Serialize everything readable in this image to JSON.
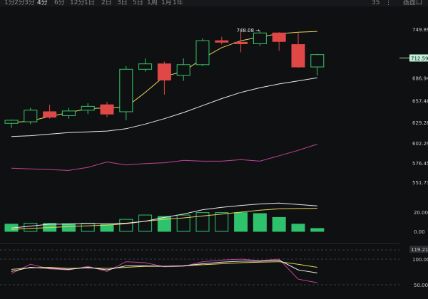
{
  "toolbar": {
    "timeframes": [
      "1分",
      "2分",
      "3分",
      "4分",
      "6分",
      "12分",
      "1日",
      "2日",
      "3日",
      "5日",
      "1周",
      "1月",
      "1年"
    ],
    "active_timeframe": "4分",
    "count_label": "35",
    "menu_label": "画面口"
  },
  "chart_data": [
    {
      "type": "candlestick",
      "panel": "price",
      "y_ticks": [
        749.89,
        712.59,
        686.94,
        657.48,
        629.28,
        602.29,
        576.45,
        551.73
      ],
      "candles": [
        {
          "o": 628,
          "h": 633,
          "l": 622,
          "c": 632
        },
        {
          "o": 630,
          "h": 648,
          "l": 627,
          "c": 645
        },
        {
          "o": 643,
          "h": 652,
          "l": 634,
          "c": 636
        },
        {
          "o": 638,
          "h": 648,
          "l": 634,
          "c": 644
        },
        {
          "o": 645,
          "h": 654,
          "l": 640,
          "c": 650
        },
        {
          "o": 652,
          "h": 656,
          "l": 636,
          "c": 640
        },
        {
          "o": 643,
          "h": 702,
          "l": 632,
          "c": 698
        },
        {
          "o": 698,
          "h": 712,
          "l": 695,
          "c": 705
        },
        {
          "o": 705,
          "h": 708,
          "l": 665,
          "c": 684
        },
        {
          "o": 690,
          "h": 712,
          "l": 683,
          "c": 704
        },
        {
          "o": 704,
          "h": 738,
          "l": 702,
          "c": 735
        },
        {
          "o": 735,
          "h": 740,
          "l": 730,
          "c": 733
        },
        {
          "o": 733,
          "h": 748,
          "l": 720,
          "c": 731
        },
        {
          "o": 731,
          "h": 748,
          "l": 728,
          "c": 745
        },
        {
          "o": 745,
          "h": 746,
          "l": 722,
          "c": 734
        },
        {
          "o": 730,
          "h": 745,
          "l": 700,
          "c": 701
        },
        {
          "o": 701,
          "h": 718,
          "l": 690,
          "c": 717
        }
      ],
      "lines": [
        {
          "color": "#e6d35a",
          "values": [
            629,
            631,
            637,
            642,
            647,
            648,
            649,
            668,
            689,
            695,
            712,
            726,
            735,
            740,
            744,
            746,
            747
          ]
        },
        {
          "color": "#e8e8e8",
          "values": [
            611,
            612,
            614,
            616,
            617,
            618,
            621,
            627,
            634,
            642,
            651,
            660,
            668,
            674,
            679,
            683,
            687
          ]
        },
        {
          "color": "#c2439b",
          "values": [
            570,
            569,
            568,
            567,
            571,
            578,
            574,
            576,
            577,
            580,
            579,
            579,
            581,
            579,
            586,
            593,
            601
          ]
        }
      ],
      "current_price": 712.59,
      "annotation": "748.08"
    },
    {
      "type": "bar",
      "panel": "volume",
      "y_ticks": [
        "20.00",
        "0.00"
      ],
      "values": [
        7.5,
        8.5,
        8.3,
        8.0,
        8.5,
        7.0,
        12.5,
        17.0,
        15.5,
        17.0,
        19.5,
        19.5,
        19.5,
        18.5,
        14.5,
        7.5,
        3.0
      ],
      "lines": [
        {
          "color": "#e6d35a",
          "values": [
            2.0,
            3.0,
            4.0,
            5.0,
            5.8,
            6.5,
            8.0,
            10.5,
            12.5,
            14.0,
            16.0,
            18.0,
            20.0,
            22.0,
            23.5,
            23.8,
            24.0
          ]
        },
        {
          "color": "#e8e8e8",
          "values": [
            3.5,
            5.5,
            7.5,
            7.5,
            8.3,
            8.0,
            8.5,
            10.5,
            14.5,
            18.0,
            22.5,
            25.0,
            27.0,
            28.5,
            29.5,
            28.0,
            26.5
          ]
        }
      ]
    },
    {
      "type": "line",
      "panel": "oscillator",
      "y_ticks": [
        "119.21",
        "100.00",
        "50.00"
      ],
      "lines": [
        {
          "color": "#c2439b",
          "values": [
            72,
            90,
            81,
            79,
            86,
            76,
            95,
            93,
            85,
            86,
            95,
            98,
            100,
            97,
            100,
            61,
            54
          ]
        },
        {
          "color": "#e6d35a",
          "values": [
            80,
            83,
            84,
            82,
            83,
            82,
            84,
            86,
            86,
            87,
            89,
            91,
            93,
            94,
            95,
            90,
            84
          ]
        },
        {
          "color": "#e8e8e8",
          "values": [
            76,
            84,
            82,
            80,
            84,
            79,
            87,
            87,
            86,
            87,
            91,
            94,
            96,
            96,
            98,
            79,
            73
          ]
        }
      ]
    }
  ]
}
